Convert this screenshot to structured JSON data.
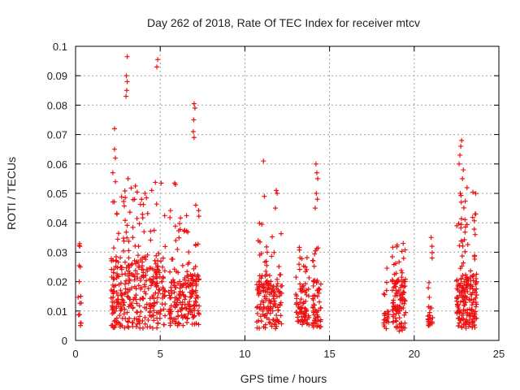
{
  "chart_data": {
    "type": "scatter",
    "title": "Day 262 of 2018, Rate Of TEC Index for receiver mtcv",
    "xlabel": "GPS time / hours",
    "ylabel": "ROTI / TECUs",
    "xlim": [
      0,
      25
    ],
    "ylim": [
      0,
      0.1
    ],
    "x_ticks": [
      0,
      5,
      10,
      15,
      20,
      25
    ],
    "x_tick_labels": [
      "0",
      "5",
      "10",
      "15",
      "20",
      "25"
    ],
    "y_ticks": [
      0,
      0.01,
      0.02,
      0.03,
      0.04,
      0.05,
      0.06,
      0.07,
      0.08,
      0.09,
      0.1
    ],
    "y_tick_labels": [
      "0",
      "0.01",
      "0.02",
      "0.03",
      "0.04",
      "0.05",
      "0.06",
      "0.07",
      "0.08",
      "0.09",
      "0.1"
    ],
    "grid": true,
    "marker": "plus",
    "color": "#ee1111",
    "clusters": [
      {
        "x_start": 0.15,
        "x_end": 0.35,
        "base_min": 0.005,
        "base_max": 0.015,
        "peak": 0.033,
        "density": 12
      },
      {
        "x_start": 2.1,
        "x_end": 5.3,
        "base_min": 0.004,
        "base_max": 0.028,
        "peak": 0.055,
        "density": 360
      },
      {
        "x_start": 5.5,
        "x_end": 7.3,
        "base_min": 0.005,
        "base_max": 0.022,
        "peak": 0.045,
        "density": 200
      },
      {
        "x_start": 10.7,
        "x_end": 12.2,
        "base_min": 0.004,
        "base_max": 0.02,
        "peak": 0.04,
        "density": 160
      },
      {
        "x_start": 13.0,
        "x_end": 13.8,
        "base_min": 0.005,
        "base_max": 0.018,
        "peak": 0.033,
        "density": 80
      },
      {
        "x_start": 14.0,
        "x_end": 14.5,
        "base_min": 0.004,
        "base_max": 0.02,
        "peak": 0.035,
        "density": 60
      },
      {
        "x_start": 18.2,
        "x_end": 18.5,
        "base_min": 0.004,
        "base_max": 0.01,
        "peak": 0.028,
        "density": 25
      },
      {
        "x_start": 18.7,
        "x_end": 19.5,
        "base_min": 0.003,
        "base_max": 0.02,
        "peak": 0.033,
        "density": 110
      },
      {
        "x_start": 20.8,
        "x_end": 21.1,
        "base_min": 0.005,
        "base_max": 0.012,
        "peak": 0.035,
        "density": 25
      },
      {
        "x_start": 22.5,
        "x_end": 23.7,
        "base_min": 0.004,
        "base_max": 0.022,
        "peak": 0.06,
        "density": 200
      }
    ],
    "notable_points": [
      {
        "x": 0.25,
        "y": 0.032
      },
      {
        "x": 0.28,
        "y": 0.025
      },
      {
        "x": 0.22,
        "y": 0.02
      },
      {
        "x": 2.2,
        "y": 0.057
      },
      {
        "x": 2.3,
        "y": 0.065
      },
      {
        "x": 2.3,
        "y": 0.072
      },
      {
        "x": 2.35,
        "y": 0.062
      },
      {
        "x": 2.45,
        "y": 0.043
      },
      {
        "x": 3.05,
        "y": 0.0965
      },
      {
        "x": 3.0,
        "y": 0.09
      },
      {
        "x": 3.05,
        "y": 0.088
      },
      {
        "x": 3.02,
        "y": 0.085
      },
      {
        "x": 2.98,
        "y": 0.083
      },
      {
        "x": 3.1,
        "y": 0.055
      },
      {
        "x": 4.85,
        "y": 0.0955
      },
      {
        "x": 4.8,
        "y": 0.093
      },
      {
        "x": 4.1,
        "y": 0.05
      },
      {
        "x": 4.5,
        "y": 0.051
      },
      {
        "x": 3.9,
        "y": 0.048
      },
      {
        "x": 5.85,
        "y": 0.0535
      },
      {
        "x": 5.9,
        "y": 0.053
      },
      {
        "x": 7.0,
        "y": 0.0805
      },
      {
        "x": 7.05,
        "y": 0.079
      },
      {
        "x": 6.98,
        "y": 0.075
      },
      {
        "x": 6.95,
        "y": 0.071
      },
      {
        "x": 7.0,
        "y": 0.069
      },
      {
        "x": 7.1,
        "y": 0.046
      },
      {
        "x": 11.1,
        "y": 0.061
      },
      {
        "x": 11.9,
        "y": 0.05
      },
      {
        "x": 11.85,
        "y": 0.051
      },
      {
        "x": 11.15,
        "y": 0.049
      },
      {
        "x": 11.8,
        "y": 0.045
      },
      {
        "x": 14.2,
        "y": 0.06
      },
      {
        "x": 14.25,
        "y": 0.057
      },
      {
        "x": 14.3,
        "y": 0.055
      },
      {
        "x": 14.22,
        "y": 0.05
      },
      {
        "x": 14.28,
        "y": 0.048
      },
      {
        "x": 14.15,
        "y": 0.045
      },
      {
        "x": 19.35,
        "y": 0.033
      },
      {
        "x": 21.0,
        "y": 0.035
      },
      {
        "x": 21.05,
        "y": 0.032
      },
      {
        "x": 22.75,
        "y": 0.066
      },
      {
        "x": 22.8,
        "y": 0.068
      },
      {
        "x": 22.7,
        "y": 0.063
      },
      {
        "x": 22.65,
        "y": 0.06
      },
      {
        "x": 22.9,
        "y": 0.058
      },
      {
        "x": 22.85,
        "y": 0.055
      },
      {
        "x": 22.72,
        "y": 0.05
      },
      {
        "x": 22.78,
        "y": 0.047
      },
      {
        "x": 23.6,
        "y": 0.043
      },
      {
        "x": 23.6,
        "y": 0.036
      }
    ]
  }
}
